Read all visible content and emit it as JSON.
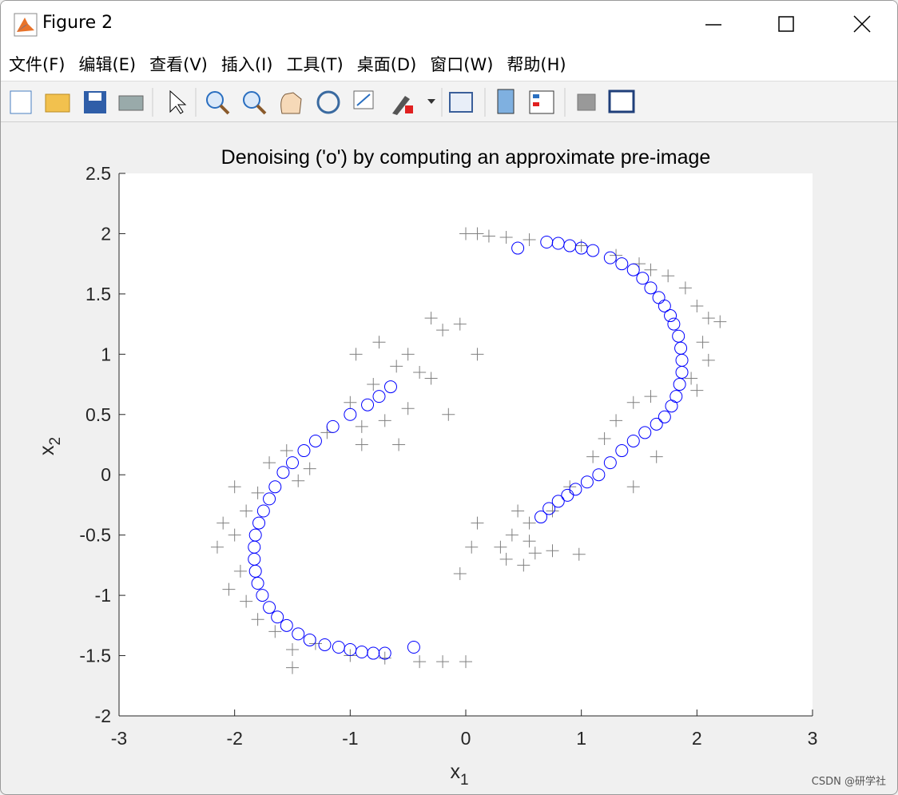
{
  "window": {
    "title": "Figure 2",
    "menu": [
      "文件(F)",
      "编辑(E)",
      "查看(V)",
      "插入(I)",
      "工具(T)",
      "桌面(D)",
      "窗口(W)",
      "帮助(H)"
    ],
    "watermark": "CSDN @研学社"
  },
  "chart_data": {
    "type": "scatter",
    "title": "Denoising ('o') by computing an approximate pre-image",
    "xlabel": {
      "text": "x",
      "sub": "1"
    },
    "ylabel": {
      "text": "x",
      "sub": "2"
    },
    "xlim": [
      -3,
      3
    ],
    "ylim": [
      -2,
      2.5
    ],
    "xticks": [
      -3,
      -2,
      -1,
      0,
      1,
      2,
      3
    ],
    "yticks": [
      -2,
      -1.5,
      -1,
      -0.5,
      0,
      0.5,
      1,
      1.5,
      2,
      2.5
    ],
    "grid": false,
    "series": [
      {
        "marker": "+",
        "color": "#808080",
        "x": [
          -2.1,
          -2.0,
          -1.95,
          -2.05,
          -1.9,
          -1.8,
          -1.65,
          -1.5,
          -1.3,
          -1.0,
          -0.7,
          -0.4,
          -0.2,
          0,
          -1.7,
          -1.8,
          -1.9,
          -1.55,
          -1.45,
          -1.35,
          -1.2,
          -1.0,
          -0.9,
          -0.7,
          -0.8,
          -0.6,
          -0.5,
          -0.4,
          -0.3,
          -0.2,
          -0.05,
          0.1,
          -0.3,
          -0.15,
          -0.5,
          -0.58,
          -0.9,
          -0.95,
          -0.75,
          -1.5,
          -2.0,
          -2.15,
          0,
          0.1,
          0.2,
          0.35,
          0.55,
          1.0,
          1.3,
          1.5,
          1.6,
          1.75,
          1.9,
          2.0,
          2.1,
          2.2,
          2.05,
          2.1,
          1.95,
          2.0,
          1.6,
          1.45,
          1.3,
          1.2,
          1.1,
          0.9,
          0.75,
          0.55,
          0.4,
          0.3,
          0.1,
          0.05,
          0.35,
          0.5,
          -0.05,
          0.75,
          0.98,
          0.6,
          1.65,
          1.45,
          0.45,
          0.55
        ],
        "y": [
          -0.4,
          -0.5,
          -0.8,
          -0.95,
          -1.05,
          -1.2,
          -1.3,
          -1.45,
          -1.4,
          -1.5,
          -1.52,
          -1.55,
          -1.55,
          -1.55,
          0.1,
          -0.15,
          -0.3,
          0.2,
          -0.05,
          0.05,
          0.35,
          0.6,
          0.4,
          0.45,
          0.75,
          0.9,
          1.0,
          0.85,
          1.3,
          1.2,
          1.25,
          1.0,
          0.8,
          0.5,
          0.55,
          0.25,
          0.25,
          1.0,
          1.1,
          -1.6,
          -0.1,
          -0.6,
          2.0,
          2.0,
          1.98,
          1.97,
          1.95,
          1.9,
          1.82,
          1.75,
          1.7,
          1.65,
          1.55,
          1.4,
          1.3,
          1.27,
          1.1,
          0.95,
          0.8,
          0.7,
          0.65,
          0.6,
          0.45,
          0.3,
          0.15,
          -0.1,
          -0.3,
          -0.4,
          -0.5,
          -0.6,
          -0.4,
          -0.6,
          -0.7,
          -0.75,
          -0.82,
          -0.63,
          -0.66,
          -0.65,
          0.15,
          -0.1,
          -0.3,
          -0.55
        ]
      },
      {
        "marker": "o",
        "color": "#0000ff",
        "x": [
          -0.65,
          -0.75,
          -0.85,
          -1.0,
          -1.15,
          -1.3,
          -1.4,
          -1.5,
          -1.58,
          -1.65,
          -1.7,
          -1.75,
          -1.79,
          -1.82,
          -1.83,
          -1.83,
          -1.82,
          -1.8,
          -1.76,
          -1.7,
          -1.63,
          -1.55,
          -1.45,
          -1.35,
          -1.22,
          -1.1,
          -1.0,
          -0.9,
          -0.8,
          -0.7,
          -0.45,
          0.45,
          0.7,
          0.8,
          0.9,
          1.0,
          1.1,
          1.25,
          1.35,
          1.45,
          1.53,
          1.6,
          1.67,
          1.72,
          1.77,
          1.8,
          1.84,
          1.86,
          1.87,
          1.87,
          1.85,
          1.82,
          1.78,
          1.72,
          1.65,
          1.55,
          1.45,
          1.35,
          1.25,
          1.15,
          1.05,
          0.95,
          0.88,
          0.8,
          0.72,
          0.65
        ],
        "y": [
          0.73,
          0.65,
          0.58,
          0.5,
          0.4,
          0.28,
          0.2,
          0.1,
          0.02,
          -0.1,
          -0.2,
          -0.3,
          -0.4,
          -0.5,
          -0.6,
          -0.7,
          -0.8,
          -0.9,
          -1.0,
          -1.1,
          -1.18,
          -1.25,
          -1.32,
          -1.37,
          -1.41,
          -1.43,
          -1.45,
          -1.47,
          -1.48,
          -1.48,
          -1.43,
          1.88,
          1.93,
          1.92,
          1.9,
          1.88,
          1.86,
          1.8,
          1.75,
          1.7,
          1.63,
          1.55,
          1.47,
          1.4,
          1.32,
          1.25,
          1.15,
          1.05,
          0.95,
          0.85,
          0.75,
          0.65,
          0.57,
          0.48,
          0.42,
          0.35,
          0.28,
          0.2,
          0.1,
          0.0,
          -0.06,
          -0.12,
          -0.17,
          -0.22,
          -0.28,
          -0.35
        ]
      }
    ]
  }
}
